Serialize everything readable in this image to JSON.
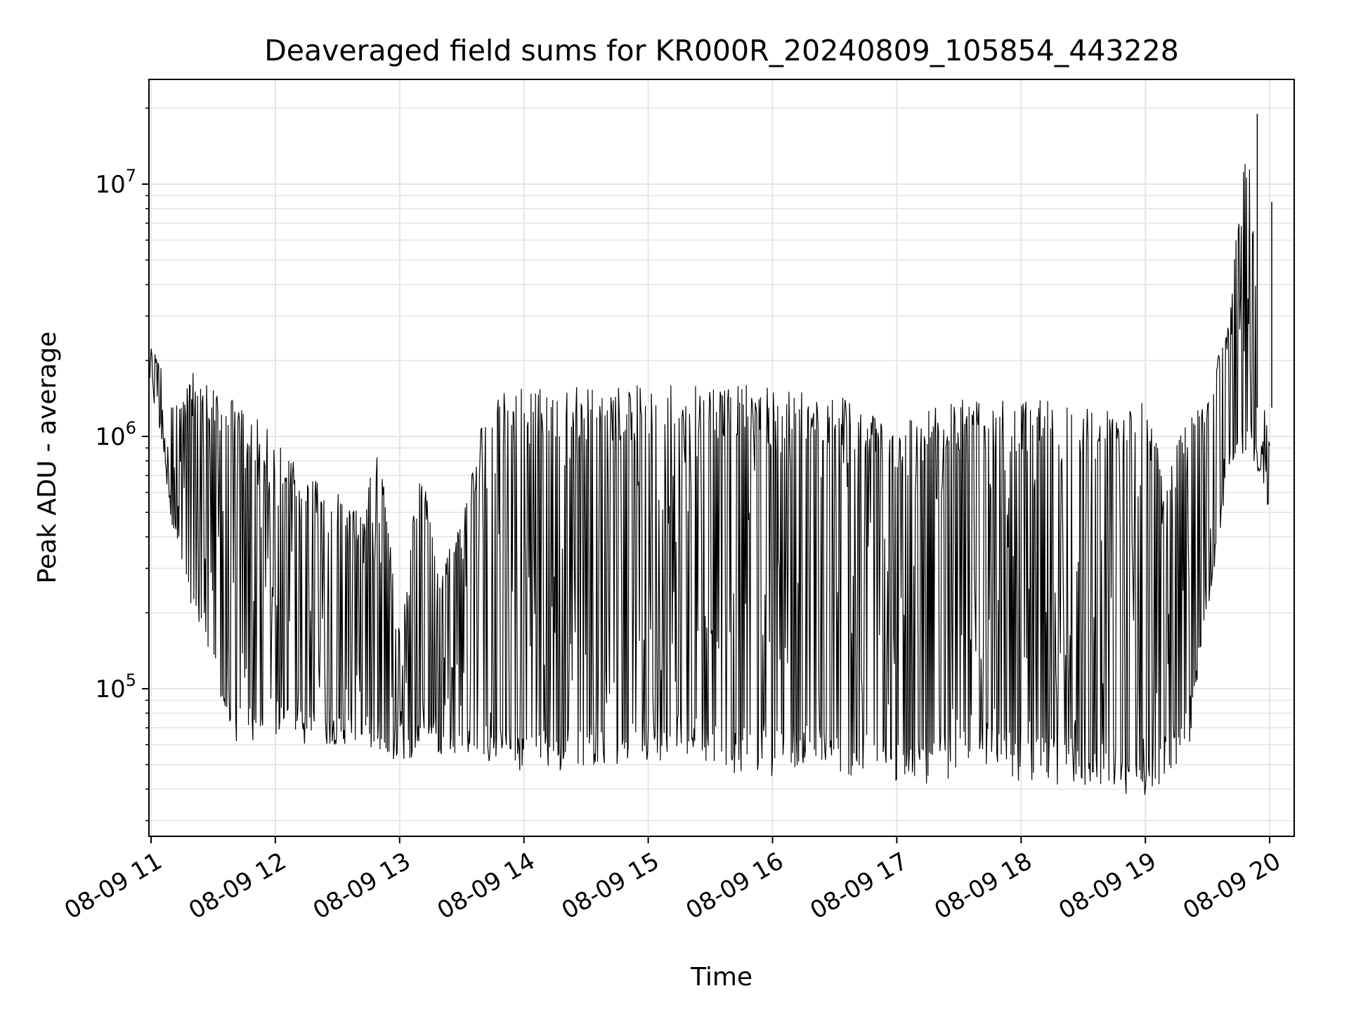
{
  "chart_data": {
    "type": "line",
    "title": "Deaveraged field sums for KR000R_20240809_105854_443228",
    "xlabel": "Time",
    "ylabel": "Peak ADU - average",
    "yscale": "log",
    "ylim": [
      26000,
      26000000
    ],
    "y_ticks": [
      {
        "value": 100000,
        "base": "10",
        "exp": "5"
      },
      {
        "value": 1000000,
        "base": "10",
        "exp": "6"
      },
      {
        "value": 10000000,
        "base": "10",
        "exp": "7"
      }
    ],
    "xlim": [
      "2024-08-09 10:58:54",
      "2024-08-09 20:00:00"
    ],
    "x_ticks": [
      {
        "value": "2024-08-09 11:00",
        "label": "08-09 11"
      },
      {
        "value": "2024-08-09 12:00",
        "label": "08-09 12"
      },
      {
        "value": "2024-08-09 13:00",
        "label": "08-09 13"
      },
      {
        "value": "2024-08-09 14:00",
        "label": "08-09 14"
      },
      {
        "value": "2024-08-09 15:00",
        "label": "08-09 15"
      },
      {
        "value": "2024-08-09 16:00",
        "label": "08-09 16"
      },
      {
        "value": "2024-08-09 17:00",
        "label": "08-09 17"
      },
      {
        "value": "2024-08-09 18:00",
        "label": "08-09 18"
      },
      {
        "value": "2024-08-09 19:00",
        "label": "08-09 19"
      },
      {
        "value": "2024-08-09 20:00",
        "label": "08-09 20"
      }
    ],
    "grid": true,
    "line_color": "#000000",
    "grid_color": "#e5e5e5",
    "series": [
      {
        "x": [
          "2024-08-09 10:59",
          "2024-08-09 11:05",
          "2024-08-09 11:10",
          "2024-08-09 11:15",
          "2024-08-09 11:20",
          "2024-08-09 11:25",
          "2024-08-09 11:30",
          "2024-08-09 11:35",
          "2024-08-09 11:40",
          "2024-08-09 11:45",
          "2024-08-09 11:50",
          "2024-08-09 11:55",
          "2024-08-09 12:00",
          "2024-08-09 12:10",
          "2024-08-09 12:20",
          "2024-08-09 12:30",
          "2024-08-09 12:40",
          "2024-08-09 12:50",
          "2024-08-09 13:00",
          "2024-08-09 13:10",
          "2024-08-09 13:20",
          "2024-08-09 13:30",
          "2024-08-09 13:40",
          "2024-08-09 13:50",
          "2024-08-09 14:00",
          "2024-08-09 14:15",
          "2024-08-09 14:30",
          "2024-08-09 14:45",
          "2024-08-09 15:00",
          "2024-08-09 15:15",
          "2024-08-09 15:30",
          "2024-08-09 15:45",
          "2024-08-09 16:00",
          "2024-08-09 16:15",
          "2024-08-09 16:30",
          "2024-08-09 16:45",
          "2024-08-09 17:00",
          "2024-08-09 17:15",
          "2024-08-09 17:30",
          "2024-08-09 17:45",
          "2024-08-09 18:00",
          "2024-08-09 18:15",
          "2024-08-09 18:30",
          "2024-08-09 18:45",
          "2024-08-09 19:00",
          "2024-08-09 19:10",
          "2024-08-09 19:20",
          "2024-08-09 19:30",
          "2024-08-09 19:40",
          "2024-08-09 19:50",
          "2024-08-09 19:55",
          "2024-08-09 20:00"
        ],
        "high": [
          2300000,
          2000000,
          1500000,
          1400000,
          1800000,
          1700000,
          1600000,
          1500000,
          1400000,
          1300000,
          1200000,
          1100000,
          1000000,
          850000,
          700000,
          600000,
          500000,
          1000000,
          200000,
          800000,
          300000,
          500000,
          1200000,
          1500000,
          1600000,
          1600000,
          1600000,
          1600000,
          1600000,
          1700000,
          1700000,
          1600000,
          1600000,
          1500000,
          1600000,
          1300000,
          1200000,
          1300000,
          1400000,
          1400000,
          1400000,
          1400000,
          1400000,
          1300000,
          1400000,
          700000,
          1200000,
          1600000,
          3000000,
          19000000,
          1700000,
          1000000
        ],
        "low": [
          1700000,
          950000,
          450000,
          300000,
          180000,
          170000,
          100000,
          80000,
          60000,
          60000,
          60000,
          60000,
          65000,
          60000,
          60000,
          60000,
          60000,
          55000,
          45000,
          60000,
          55000,
          55000,
          50000,
          50000,
          45000,
          45000,
          50000,
          50000,
          50000,
          55000,
          50000,
          45000,
          45000,
          50000,
          45000,
          45000,
          40000,
          42000,
          45000,
          50000,
          42000,
          42000,
          40000,
          40000,
          35000,
          45000,
          50000,
          200000,
          700000,
          900000,
          700000,
          500000
        ]
      }
    ],
    "annotations": [
      {
        "x": "2024-08-09 19:54",
        "y": 19000000,
        "note": "spike"
      },
      {
        "x": "2024-08-09 20:01",
        "y": 8500000,
        "note": "spike"
      }
    ]
  }
}
